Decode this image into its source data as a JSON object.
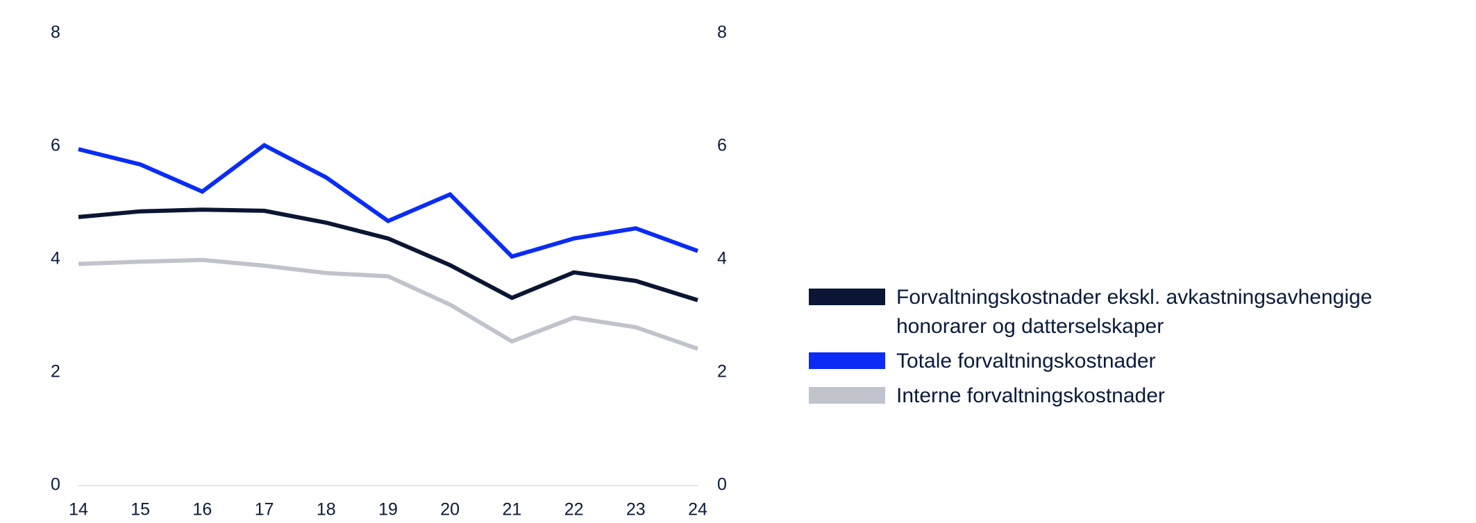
{
  "chart_data": {
    "type": "line",
    "title": "",
    "xlabel": "",
    "ylabel": "",
    "x": [
      "14",
      "15",
      "16",
      "17",
      "18",
      "19",
      "20",
      "21",
      "22",
      "23",
      "24"
    ],
    "ylim": [
      0,
      8
    ],
    "yticks": [
      "0",
      "2",
      "4",
      "6",
      "8"
    ],
    "right_axis_ticks": [
      "0",
      "2",
      "4",
      "6",
      "8"
    ],
    "grid": false,
    "legend_position": "right",
    "series": [
      {
        "name": "Forvaltningskostnader ekskl. avkastningsavhengige honorarer og datterselskaper",
        "color": "#0a1633",
        "values": [
          4.75,
          4.85,
          4.88,
          4.86,
          4.65,
          4.37,
          3.9,
          3.32,
          3.77,
          3.62,
          3.28
        ]
      },
      {
        "name": "Totale forvaltningskostnader",
        "color": "#0a2cf5",
        "values": [
          5.95,
          5.68,
          5.2,
          6.02,
          5.45,
          4.68,
          5.15,
          4.05,
          4.37,
          4.55,
          4.15
        ]
      },
      {
        "name": "Interne forvaltningskostnader",
        "color": "#c0c3cb",
        "values": [
          3.92,
          3.96,
          3.99,
          3.89,
          3.76,
          3.7,
          3.2,
          2.55,
          2.97,
          2.8,
          2.42
        ]
      }
    ]
  }
}
